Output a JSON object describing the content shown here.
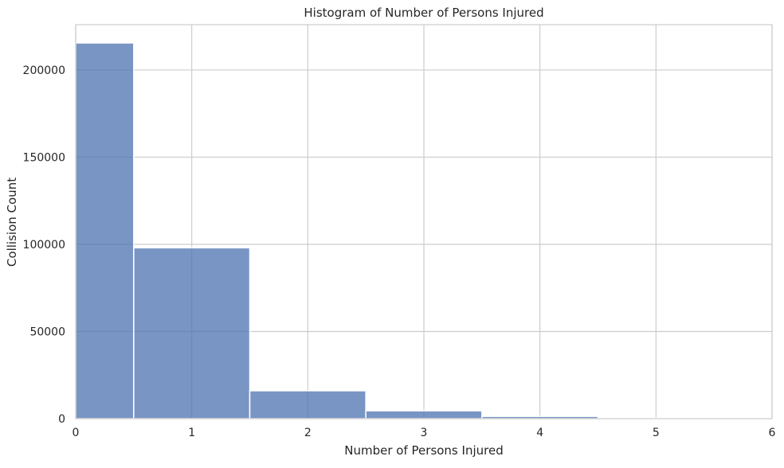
{
  "chart_data": {
    "type": "bar",
    "title": "Histogram of Number of Persons Injured",
    "xlabel": "Number of Persons Injured",
    "ylabel": "Collision Count",
    "xlim": [
      0,
      6
    ],
    "ylim": [
      0,
      226000
    ],
    "grid": true,
    "bar_color": "#4c72b0",
    "bins": [
      {
        "start": 0,
        "end": 0.5,
        "value": 215500
      },
      {
        "start": 0.5,
        "end": 1.5,
        "value": 98000
      },
      {
        "start": 1.5,
        "end": 2.5,
        "value": 16000
      },
      {
        "start": 2.5,
        "end": 3.5,
        "value": 4500
      },
      {
        "start": 3.5,
        "end": 4.5,
        "value": 1300
      },
      {
        "start": 4.5,
        "end": 5.5,
        "value": 400
      },
      {
        "start": 5.5,
        "end": 6.5,
        "value": 150
      }
    ],
    "x_ticks": [
      0,
      1,
      2,
      3,
      4,
      5,
      6
    ],
    "y_ticks": [
      0,
      50000,
      100000,
      150000,
      200000
    ]
  }
}
